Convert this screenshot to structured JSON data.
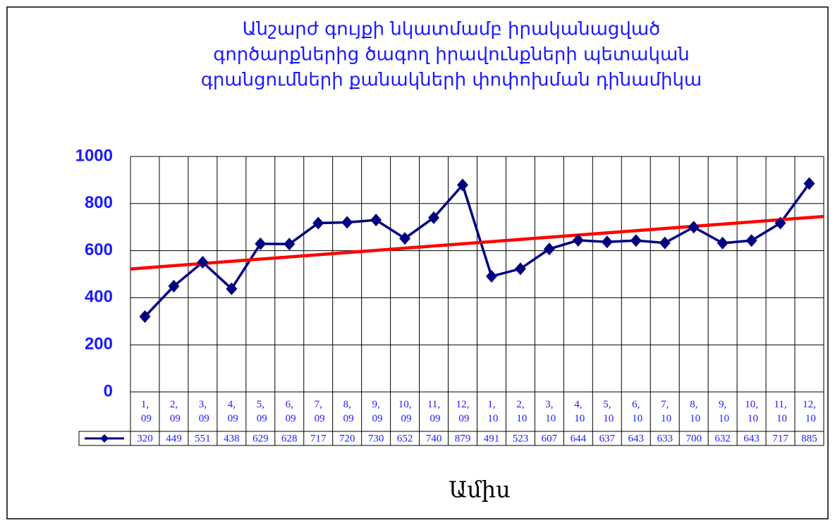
{
  "chart_data": {
    "type": "line",
    "title": [
      "Անշարժ գույքի նկատմամբ իրականացված",
      "գործարքներից ծագող իրավունքների պետական",
      "գրանցումների քանակների փոփոխման դինամիկա"
    ],
    "x_label": "Ամիս",
    "categories": [
      "1, 09",
      "2, 09",
      "3, 09",
      "4, 09",
      "5, 09",
      "6, 09",
      "7, 09",
      "8, 09",
      "9, 09",
      "10, 09",
      "11, 09",
      "12, 09",
      "1, 10",
      "2, 10",
      "3, 10",
      "4, 10",
      "5, 10",
      "6, 10",
      "7, 10",
      "8, 10",
      "9, 10",
      "10, 10",
      "11, 10",
      "12, 10"
    ],
    "series": [
      {
        "color": "#000080",
        "values": [
          320,
          449,
          551,
          438,
          629,
          628,
          717,
          720,
          730,
          652,
          740,
          879,
          491,
          523,
          607,
          644,
          637,
          643,
          633,
          700,
          632,
          643,
          717,
          885
        ]
      }
    ],
    "ylim": [
      0,
      1000
    ],
    "yticks": [
      0,
      200,
      400,
      600,
      800,
      1000
    ],
    "grid": true,
    "trendline": {
      "kind": "linear",
      "color": "#ff0000"
    },
    "data_table": true
  }
}
